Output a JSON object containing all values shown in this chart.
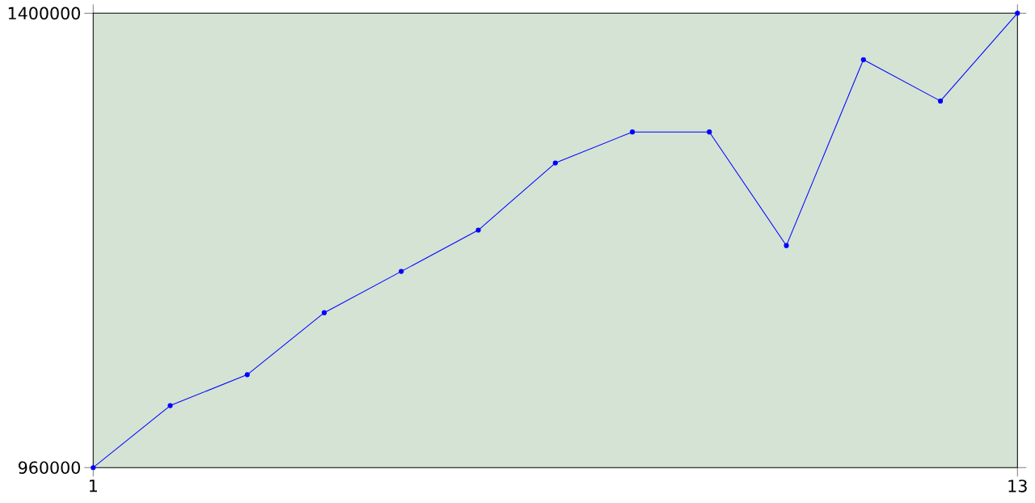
{
  "chart_data": {
    "type": "line",
    "x": [
      1,
      2,
      3,
      4,
      5,
      6,
      7,
      8,
      9,
      10,
      11,
      12,
      13
    ],
    "series": [
      {
        "color": "#0000ff",
        "values": [
          960000,
          1020000,
          1050000,
          1110000,
          1150000,
          1190000,
          1255000,
          1285000,
          1285000,
          1175000,
          1355000,
          1315000,
          1400000
        ]
      }
    ],
    "xlim": [
      1,
      13
    ],
    "xticks": [
      1,
      13
    ],
    "ylim": [
      960000,
      1400000
    ],
    "yticks": [
      960000,
      1400000
    ],
    "grid": false,
    "marker": "circle",
    "line_style": "solid"
  }
}
